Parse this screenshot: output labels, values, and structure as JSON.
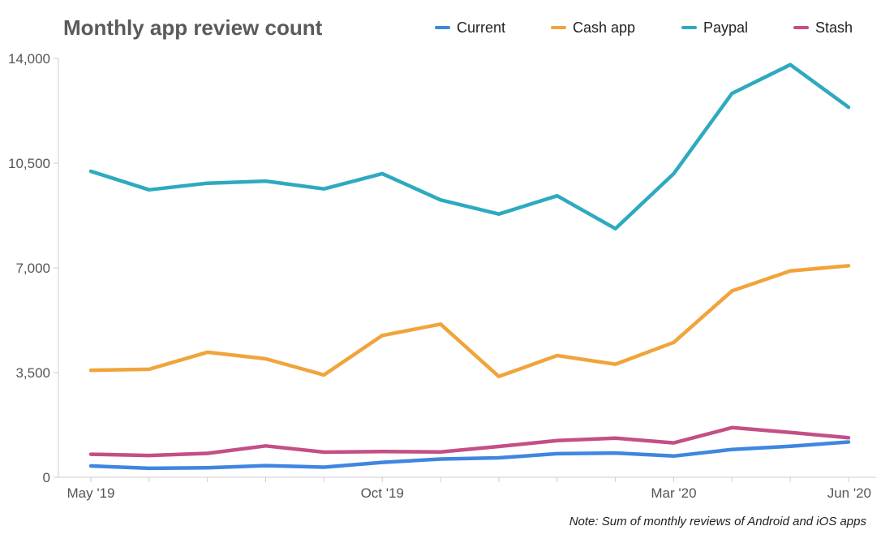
{
  "chart_data": {
    "type": "line",
    "title": "Monthly app review count",
    "xlabel": "",
    "ylabel": "",
    "ylim": [
      0,
      14000
    ],
    "yticks": [
      0,
      3500,
      7000,
      10500,
      14000
    ],
    "ytick_labels": [
      "0",
      "3,500",
      "7,000",
      "10,500",
      "14,000"
    ],
    "x": [
      "May '19",
      "Jun '19",
      "Jul '19",
      "Aug '19",
      "Sep '19",
      "Oct '19",
      "Nov '19",
      "Dec '19",
      "Jan '20",
      "Feb '20",
      "Mar '20",
      "Apr '20",
      "May '20",
      "Jun '20"
    ],
    "xtick_labels": [
      {
        "index": 0,
        "label": "May '19"
      },
      {
        "index": 5,
        "label": "Oct '19"
      },
      {
        "index": 10,
        "label": "Mar '20"
      },
      {
        "index": 13,
        "label": "Jun '20"
      }
    ],
    "legend_position": "top-right",
    "grid": false,
    "series": [
      {
        "name": "Current",
        "color": "#3f86e0",
        "values": [
          380,
          300,
          320,
          390,
          340,
          500,
          610,
          650,
          790,
          810,
          710,
          930,
          1040,
          1180
        ]
      },
      {
        "name": "Cash app",
        "color": "#f0a43a",
        "values": [
          3580,
          3610,
          4180,
          3960,
          3420,
          4740,
          5120,
          3370,
          4070,
          3780,
          4510,
          6230,
          6900,
          7070
        ]
      },
      {
        "name": "Paypal",
        "color": "#2eaabf",
        "values": [
          10230,
          9610,
          9830,
          9900,
          9640,
          10150,
          9270,
          8800,
          9410,
          8310,
          10150,
          12830,
          13790,
          12370
        ]
      },
      {
        "name": "Stash",
        "color": "#c44f86",
        "values": [
          770,
          730,
          800,
          1050,
          840,
          860,
          850,
          1030,
          1230,
          1310,
          1150,
          1660,
          1500,
          1320
        ]
      }
    ],
    "note": "Note: Sum of monthly reviews of Android and iOS apps"
  }
}
